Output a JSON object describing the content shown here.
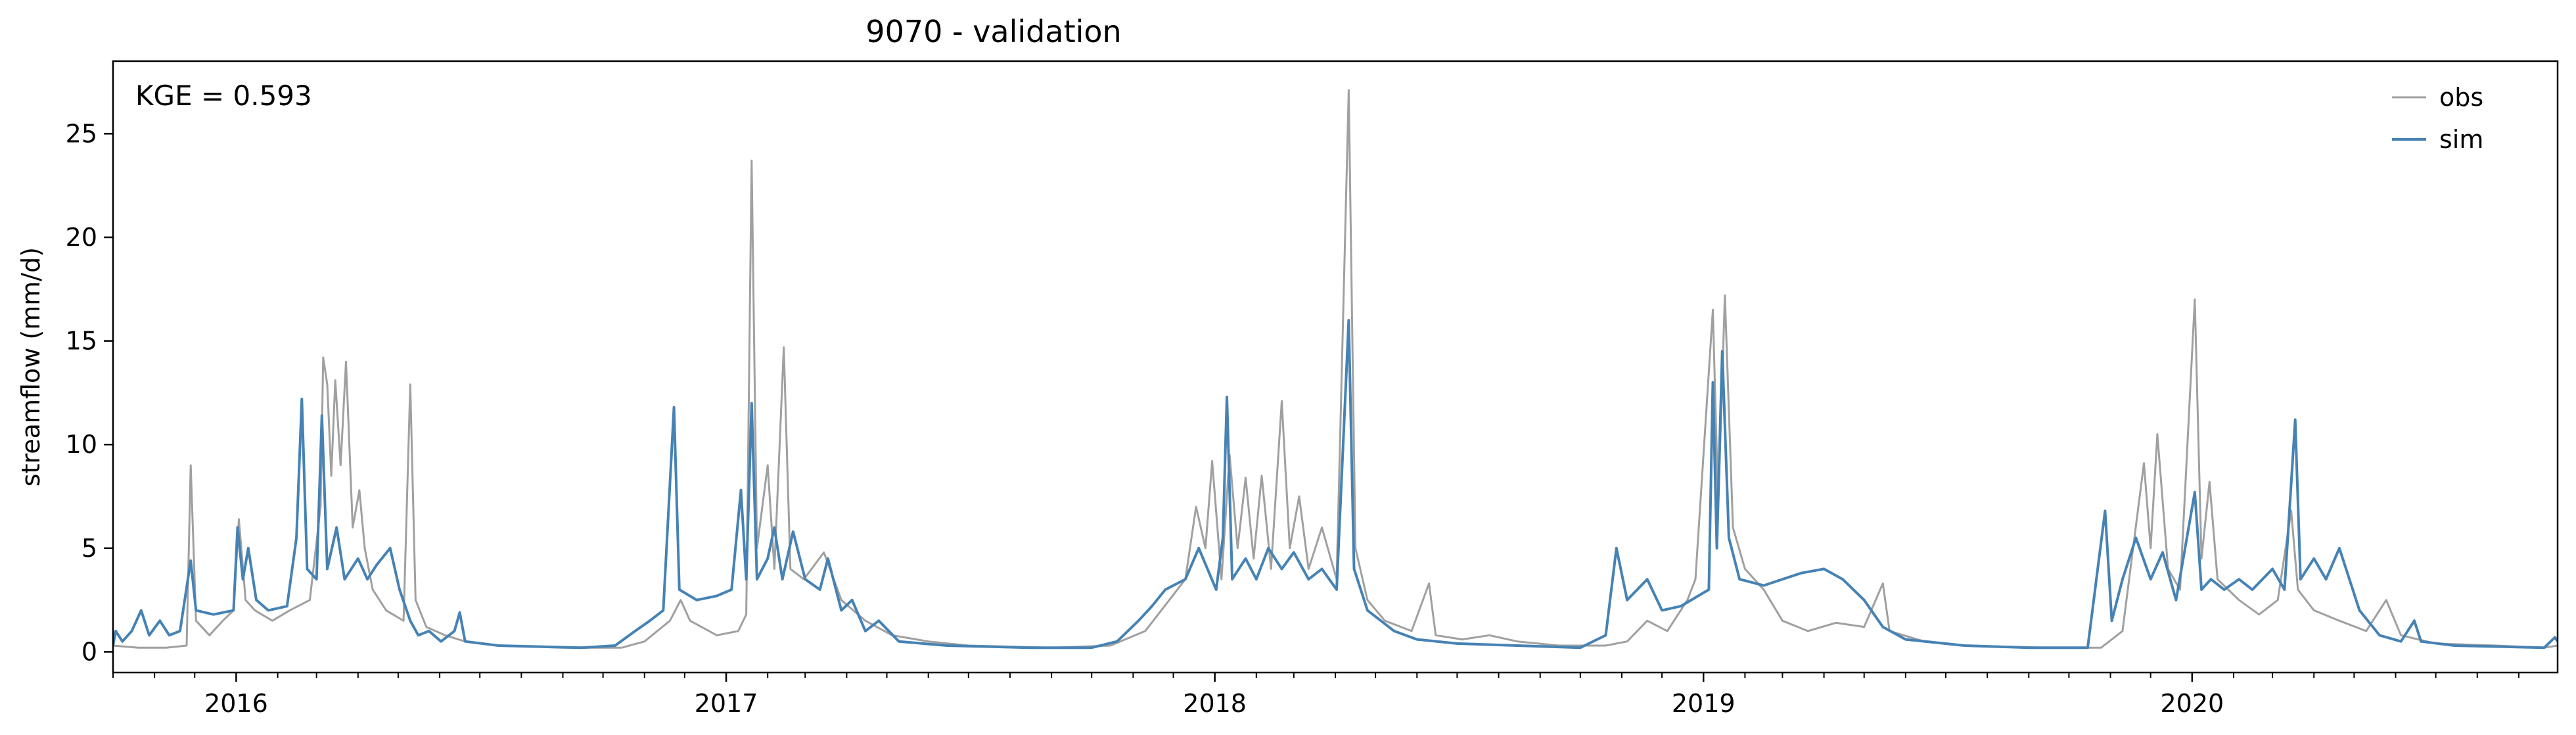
{
  "chart_data": {
    "type": "line",
    "title": "9070 - validation",
    "xlabel": "",
    "ylabel": "streamflow (mm/d)",
    "xlim": [
      "2015-10-01",
      "2020-09-30"
    ],
    "ylim": [
      -1,
      28.5
    ],
    "yticks": [
      0,
      5,
      10,
      15,
      20,
      25
    ],
    "xticks": [
      {
        "date": "2016-01-01",
        "label": "2016"
      },
      {
        "date": "2017-01-01",
        "label": "2017"
      },
      {
        "date": "2018-01-01",
        "label": "2018"
      },
      {
        "date": "2019-01-01",
        "label": "2019"
      },
      {
        "date": "2020-01-01",
        "label": "2020"
      }
    ],
    "grid": false,
    "legend": "top-right",
    "annotation": "KGE = 0.593",
    "series": [
      {
        "name": "obs",
        "color": "#a0a0a0",
        "points": [
          [
            "2015-10-01",
            0.3
          ],
          [
            "2015-10-20",
            0.2
          ],
          [
            "2015-11-10",
            0.2
          ],
          [
            "2015-11-25",
            0.3
          ],
          [
            "2015-11-28",
            9.0
          ],
          [
            "2015-12-02",
            1.5
          ],
          [
            "2015-12-12",
            0.8
          ],
          [
            "2015-12-22",
            1.5
          ],
          [
            "2015-12-30",
            2.0
          ],
          [
            "2016-01-03",
            6.4
          ],
          [
            "2016-01-08",
            2.5
          ],
          [
            "2016-01-15",
            2.0
          ],
          [
            "2016-01-28",
            1.5
          ],
          [
            "2016-02-10",
            2.0
          ],
          [
            "2016-02-25",
            2.5
          ],
          [
            "2016-03-04",
            7.0
          ],
          [
            "2016-03-06",
            14.2
          ],
          [
            "2016-03-09",
            12.9
          ],
          [
            "2016-03-12",
            8.5
          ],
          [
            "2016-03-15",
            13.1
          ],
          [
            "2016-03-19",
            9.0
          ],
          [
            "2016-03-23",
            14.0
          ],
          [
            "2016-03-28",
            6.0
          ],
          [
            "2016-04-02",
            7.8
          ],
          [
            "2016-04-06",
            5.0
          ],
          [
            "2016-04-12",
            3.0
          ],
          [
            "2016-04-22",
            2.0
          ],
          [
            "2016-05-05",
            1.5
          ],
          [
            "2016-05-10",
            12.9
          ],
          [
            "2016-05-14",
            2.5
          ],
          [
            "2016-05-22",
            1.2
          ],
          [
            "2016-06-05",
            0.8
          ],
          [
            "2016-06-20",
            0.5
          ],
          [
            "2016-07-15",
            0.3
          ],
          [
            "2016-09-01",
            0.2
          ],
          [
            "2016-10-15",
            0.2
          ],
          [
            "2016-11-01",
            0.5
          ],
          [
            "2016-11-20",
            1.5
          ],
          [
            "2016-11-28",
            2.5
          ],
          [
            "2016-12-05",
            1.5
          ],
          [
            "2016-12-25",
            0.8
          ],
          [
            "2017-01-10",
            1.0
          ],
          [
            "2017-01-16",
            1.8
          ],
          [
            "2017-01-20",
            23.7
          ],
          [
            "2017-01-24",
            5.0
          ],
          [
            "2017-02-01",
            9.0
          ],
          [
            "2017-02-06",
            4.0
          ],
          [
            "2017-02-13",
            14.7
          ],
          [
            "2017-02-18",
            4.0
          ],
          [
            "2017-02-28",
            3.5
          ],
          [
            "2017-03-15",
            4.8
          ],
          [
            "2017-03-28",
            2.5
          ],
          [
            "2017-04-15",
            1.5
          ],
          [
            "2017-05-05",
            0.8
          ],
          [
            "2017-06-01",
            0.5
          ],
          [
            "2017-07-01",
            0.3
          ],
          [
            "2017-09-01",
            0.2
          ],
          [
            "2017-10-15",
            0.3
          ],
          [
            "2017-11-10",
            1.0
          ],
          [
            "2017-11-28",
            2.5
          ],
          [
            "2017-12-10",
            3.5
          ],
          [
            "2017-12-18",
            7.0
          ],
          [
            "2017-12-25",
            5.0
          ],
          [
            "2017-12-30",
            9.2
          ],
          [
            "2018-01-06",
            3.5
          ],
          [
            "2018-01-12",
            9.5
          ],
          [
            "2018-01-18",
            5.0
          ],
          [
            "2018-01-24",
            8.4
          ],
          [
            "2018-01-30",
            4.5
          ],
          [
            "2018-02-05",
            8.5
          ],
          [
            "2018-02-12",
            4.0
          ],
          [
            "2018-02-20",
            12.1
          ],
          [
            "2018-02-26",
            5.0
          ],
          [
            "2018-03-05",
            7.5
          ],
          [
            "2018-03-12",
            4.0
          ],
          [
            "2018-03-22",
            6.0
          ],
          [
            "2018-04-02",
            3.5
          ],
          [
            "2018-04-11",
            27.1
          ],
          [
            "2018-04-16",
            5.0
          ],
          [
            "2018-04-25",
            2.5
          ],
          [
            "2018-05-08",
            1.5
          ],
          [
            "2018-05-28",
            1.0
          ],
          [
            "2018-06-10",
            3.3
          ],
          [
            "2018-06-15",
            0.8
          ],
          [
            "2018-07-05",
            0.6
          ],
          [
            "2018-07-25",
            0.8
          ],
          [
            "2018-08-15",
            0.5
          ],
          [
            "2018-09-15",
            0.3
          ],
          [
            "2018-10-20",
            0.3
          ],
          [
            "2018-11-05",
            0.5
          ],
          [
            "2018-11-20",
            1.5
          ],
          [
            "2018-12-05",
            1.0
          ],
          [
            "2018-12-20",
            2.5
          ],
          [
            "2018-12-26",
            3.5
          ],
          [
            "2019-01-08",
            16.5
          ],
          [
            "2019-01-12",
            7.0
          ],
          [
            "2019-01-17",
            17.2
          ],
          [
            "2019-01-23",
            6.0
          ],
          [
            "2019-02-01",
            4.0
          ],
          [
            "2019-02-15",
            3.0
          ],
          [
            "2019-03-01",
            1.5
          ],
          [
            "2019-03-20",
            1.0
          ],
          [
            "2019-04-10",
            1.4
          ],
          [
            "2019-05-01",
            1.2
          ],
          [
            "2019-05-15",
            3.3
          ],
          [
            "2019-05-20",
            1.0
          ],
          [
            "2019-06-15",
            0.5
          ],
          [
            "2019-07-15",
            0.3
          ],
          [
            "2019-09-15",
            0.2
          ],
          [
            "2019-10-25",
            0.2
          ],
          [
            "2019-11-10",
            1.0
          ],
          [
            "2019-11-26",
            9.1
          ],
          [
            "2019-12-01",
            5.0
          ],
          [
            "2019-12-06",
            10.5
          ],
          [
            "2019-12-14",
            4.0
          ],
          [
            "2019-12-23",
            3.0
          ],
          [
            "2020-01-03",
            17.0
          ],
          [
            "2020-01-08",
            4.5
          ],
          [
            "2020-01-14",
            8.2
          ],
          [
            "2020-01-20",
            3.5
          ],
          [
            "2020-02-05",
            2.5
          ],
          [
            "2020-02-20",
            1.8
          ],
          [
            "2020-03-05",
            2.5
          ],
          [
            "2020-03-15",
            6.8
          ],
          [
            "2020-03-20",
            3.0
          ],
          [
            "2020-04-01",
            2.0
          ],
          [
            "2020-04-20",
            1.5
          ],
          [
            "2020-05-10",
            1.0
          ],
          [
            "2020-05-25",
            2.5
          ],
          [
            "2020-06-05",
            0.8
          ],
          [
            "2020-07-01",
            0.4
          ],
          [
            "2020-08-15",
            0.3
          ],
          [
            "2020-09-20",
            0.2
          ],
          [
            "2020-09-30",
            0.3
          ]
        ]
      },
      {
        "name": "sim",
        "color": "#4682b4",
        "points": [
          [
            "2015-10-01",
            0.3
          ],
          [
            "2015-10-03",
            1.0
          ],
          [
            "2015-10-08",
            0.5
          ],
          [
            "2015-10-15",
            1.0
          ],
          [
            "2015-10-22",
            2.0
          ],
          [
            "2015-10-28",
            0.8
          ],
          [
            "2015-11-05",
            1.5
          ],
          [
            "2015-11-12",
            0.8
          ],
          [
            "2015-11-20",
            1.0
          ],
          [
            "2015-11-28",
            4.4
          ],
          [
            "2015-12-02",
            2.0
          ],
          [
            "2015-12-15",
            1.8
          ],
          [
            "2015-12-30",
            2.0
          ],
          [
            "2016-01-02",
            6.0
          ],
          [
            "2016-01-06",
            3.5
          ],
          [
            "2016-01-10",
            5.0
          ],
          [
            "2016-01-16",
            2.5
          ],
          [
            "2016-01-25",
            2.0
          ],
          [
            "2016-02-08",
            2.2
          ],
          [
            "2016-02-15",
            5.5
          ],
          [
            "2016-02-19",
            12.2
          ],
          [
            "2016-02-23",
            4.0
          ],
          [
            "2016-03-01",
            3.5
          ],
          [
            "2016-03-05",
            11.4
          ],
          [
            "2016-03-09",
            4.0
          ],
          [
            "2016-03-16",
            6.0
          ],
          [
            "2016-03-22",
            3.5
          ],
          [
            "2016-04-01",
            4.5
          ],
          [
            "2016-04-08",
            3.5
          ],
          [
            "2016-04-15",
            4.2
          ],
          [
            "2016-04-25",
            5.0
          ],
          [
            "2016-05-02",
            3.0
          ],
          [
            "2016-05-10",
            1.5
          ],
          [
            "2016-05-16",
            0.8
          ],
          [
            "2016-05-24",
            1.0
          ],
          [
            "2016-06-02",
            0.5
          ],
          [
            "2016-06-12",
            1.0
          ],
          [
            "2016-06-16",
            1.9
          ],
          [
            "2016-06-20",
            0.5
          ],
          [
            "2016-07-15",
            0.3
          ],
          [
            "2016-09-15",
            0.2
          ],
          [
            "2016-10-10",
            0.3
          ],
          [
            "2016-10-25",
            1.0
          ],
          [
            "2016-11-05",
            1.5
          ],
          [
            "2016-11-15",
            2.0
          ],
          [
            "2016-11-23",
            11.8
          ],
          [
            "2016-11-27",
            3.0
          ],
          [
            "2016-12-10",
            2.5
          ],
          [
            "2016-12-25",
            2.7
          ],
          [
            "2017-01-05",
            3.0
          ],
          [
            "2017-01-12",
            7.8
          ],
          [
            "2017-01-16",
            3.5
          ],
          [
            "2017-01-20",
            12.0
          ],
          [
            "2017-01-24",
            3.5
          ],
          [
            "2017-02-01",
            4.5
          ],
          [
            "2017-02-06",
            6.0
          ],
          [
            "2017-02-12",
            3.5
          ],
          [
            "2017-02-20",
            5.8
          ],
          [
            "2017-03-01",
            3.5
          ],
          [
            "2017-03-12",
            3.0
          ],
          [
            "2017-03-18",
            4.5
          ],
          [
            "2017-03-28",
            2.0
          ],
          [
            "2017-04-05",
            2.5
          ],
          [
            "2017-04-15",
            1.0
          ],
          [
            "2017-04-25",
            1.5
          ],
          [
            "2017-05-10",
            0.5
          ],
          [
            "2017-06-15",
            0.3
          ],
          [
            "2017-08-15",
            0.2
          ],
          [
            "2017-10-01",
            0.2
          ],
          [
            "2017-10-20",
            0.5
          ],
          [
            "2017-11-05",
            1.5
          ],
          [
            "2017-11-15",
            2.2
          ],
          [
            "2017-11-25",
            3.0
          ],
          [
            "2017-12-10",
            3.5
          ],
          [
            "2017-12-20",
            5.0
          ],
          [
            "2018-01-02",
            3.0
          ],
          [
            "2018-01-07",
            5.5
          ],
          [
            "2018-01-10",
            12.3
          ],
          [
            "2018-01-14",
            3.5
          ],
          [
            "2018-01-24",
            4.5
          ],
          [
            "2018-02-01",
            3.5
          ],
          [
            "2018-02-10",
            5.0
          ],
          [
            "2018-02-20",
            4.0
          ],
          [
            "2018-03-01",
            4.8
          ],
          [
            "2018-03-12",
            3.5
          ],
          [
            "2018-03-22",
            4.0
          ],
          [
            "2018-04-02",
            3.0
          ],
          [
            "2018-04-11",
            16.0
          ],
          [
            "2018-04-15",
            4.0
          ],
          [
            "2018-04-25",
            2.0
          ],
          [
            "2018-05-05",
            1.5
          ],
          [
            "2018-05-15",
            1.0
          ],
          [
            "2018-06-01",
            0.6
          ],
          [
            "2018-07-01",
            0.4
          ],
          [
            "2018-08-15",
            0.3
          ],
          [
            "2018-10-01",
            0.2
          ],
          [
            "2018-10-20",
            0.8
          ],
          [
            "2018-10-28",
            5.0
          ],
          [
            "2018-11-05",
            2.5
          ],
          [
            "2018-11-20",
            3.5
          ],
          [
            "2018-12-01",
            2.0
          ],
          [
            "2018-12-15",
            2.2
          ],
          [
            "2019-01-05",
            3.0
          ],
          [
            "2019-01-08",
            13.0
          ],
          [
            "2019-01-11",
            5.0
          ],
          [
            "2019-01-15",
            14.5
          ],
          [
            "2019-01-20",
            5.5
          ],
          [
            "2019-01-28",
            3.5
          ],
          [
            "2019-02-15",
            3.2
          ],
          [
            "2019-03-01",
            3.5
          ],
          [
            "2019-03-15",
            3.8
          ],
          [
            "2019-04-01",
            4.0
          ],
          [
            "2019-04-15",
            3.5
          ],
          [
            "2019-05-01",
            2.5
          ],
          [
            "2019-05-15",
            1.2
          ],
          [
            "2019-06-01",
            0.6
          ],
          [
            "2019-07-15",
            0.3
          ],
          [
            "2019-09-01",
            0.2
          ],
          [
            "2019-10-15",
            0.2
          ],
          [
            "2019-10-28",
            6.8
          ],
          [
            "2019-11-02",
            1.5
          ],
          [
            "2019-11-10",
            3.5
          ],
          [
            "2019-11-20",
            5.5
          ],
          [
            "2019-12-01",
            3.5
          ],
          [
            "2019-12-10",
            4.8
          ],
          [
            "2019-12-20",
            2.5
          ],
          [
            "2020-01-03",
            7.7
          ],
          [
            "2020-01-08",
            3.0
          ],
          [
            "2020-01-15",
            3.5
          ],
          [
            "2020-01-25",
            3.0
          ],
          [
            "2020-02-05",
            3.5
          ],
          [
            "2020-02-15",
            3.0
          ],
          [
            "2020-03-01",
            4.0
          ],
          [
            "2020-03-10",
            3.0
          ],
          [
            "2020-03-18",
            11.2
          ],
          [
            "2020-03-22",
            3.5
          ],
          [
            "2020-04-01",
            4.5
          ],
          [
            "2020-04-10",
            3.5
          ],
          [
            "2020-04-20",
            5.0
          ],
          [
            "2020-05-05",
            2.0
          ],
          [
            "2020-05-20",
            0.8
          ],
          [
            "2020-06-05",
            0.5
          ],
          [
            "2020-06-15",
            1.5
          ],
          [
            "2020-06-20",
            0.5
          ],
          [
            "2020-07-15",
            0.3
          ],
          [
            "2020-09-20",
            0.2
          ],
          [
            "2020-09-28",
            0.7
          ],
          [
            "2020-09-30",
            0.5
          ]
        ]
      }
    ]
  }
}
